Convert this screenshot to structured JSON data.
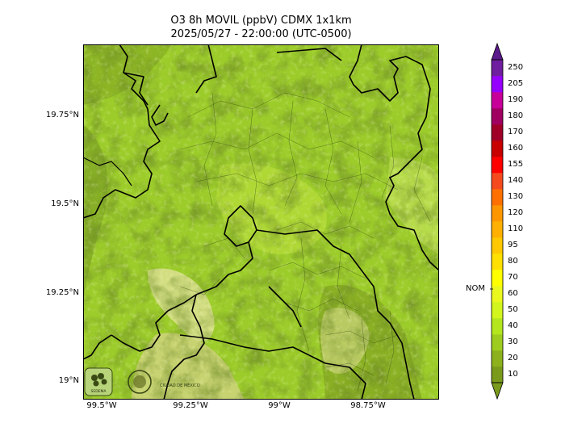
{
  "title": {
    "line1": "O3 8h MOVIL (ppbV) CDMX 1x1km",
    "line2": "2025/05/27 - 22:00:00 (UTC-0500)"
  },
  "map": {
    "lat_ticks": [
      "19.75°N",
      "19.5°N",
      "19.25°N",
      "19°N"
    ],
    "lon_ticks": [
      "99.5°W",
      "99.25°W",
      "99°W",
      "98.75°W"
    ],
    "logos": [
      {
        "name": "sedema-logo",
        "text": "SEDEMA"
      },
      {
        "name": "cdmx-logo",
        "text": "CIUDAD DE MÉXICO"
      }
    ],
    "colors": {
      "dominant": "#9ccc2a",
      "dark": "#6f9a1e",
      "light": "#c8e45a",
      "pale": "#e8e6a6"
    }
  },
  "colorbar": {
    "nom_label": "NOM",
    "nom_value": 65,
    "levels": [
      10,
      20,
      30,
      40,
      50,
      60,
      70,
      80,
      95,
      110,
      120,
      130,
      140,
      155,
      160,
      170,
      180,
      190,
      205,
      250
    ],
    "colors": [
      "#7a9a1c",
      "#8cb11c",
      "#9ecc1e",
      "#b4e61e",
      "#d2f51e",
      "#eaf81e",
      "#ffff00",
      "#ffe000",
      "#ffc800",
      "#ffb000",
      "#ff9600",
      "#ff7000",
      "#f54a1e",
      "#ff0000",
      "#c80000",
      "#a00028",
      "#a00060",
      "#c8009a",
      "#9600ff",
      "#6e1e9e"
    ]
  }
}
